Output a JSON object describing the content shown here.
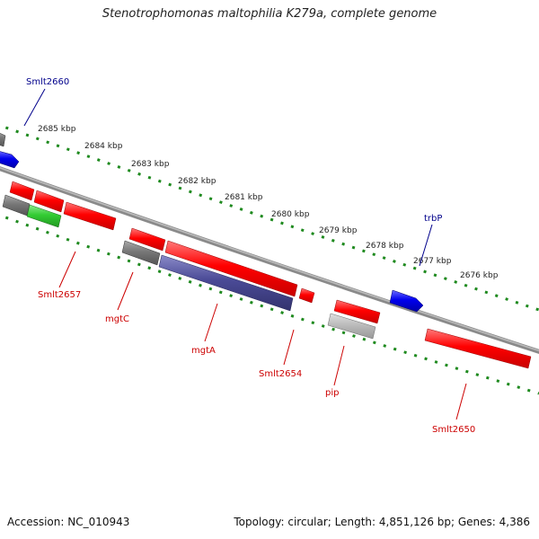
{
  "title": "Stenotrophomonas maltophilia K279a, complete genome",
  "footer": {
    "accession": "Accession: NC_010943",
    "topology": "Topology: circular; Length: 4,851,126 bp; Genes: 4,386"
  },
  "colors": {
    "backbone": "#8a8a8a",
    "ticks": "#1f8a1f",
    "label_forward": "#00008b",
    "label_reverse": "#cc0000",
    "gene_red": "#ff0000",
    "gene_blue": "#0000ee",
    "gene_green": "#33cc33",
    "gene_gray": "#777777",
    "gene_lightgray": "#bbbbbb",
    "gene_navy": "#4a4a96"
  },
  "ruler": {
    "ticks": [
      "2685 kbp",
      "2684 kbp",
      "2683 kbp",
      "2682 kbp",
      "2681 kbp",
      "2680 kbp",
      "2679 kbp",
      "2678 kbp",
      "2677 kbp",
      "2676 kbp"
    ]
  },
  "gene_labels": {
    "smlt2660": "Smlt2660",
    "trbP": "trbP",
    "smlt2657": "Smlt2657",
    "mgtC": "mgtC",
    "mgtA": "mgtA",
    "smlt2654": "Smlt2654",
    "pip": "pip",
    "smlt2650": "Smlt2650"
  }
}
